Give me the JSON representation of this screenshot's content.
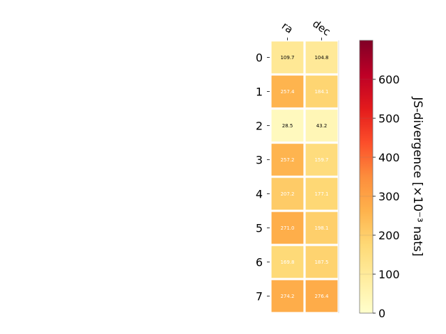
{
  "chart_data": {
    "type": "heatmap",
    "columns": [
      "ra",
      "dec"
    ],
    "rows": [
      "0",
      "1",
      "2",
      "3",
      "4",
      "5",
      "6",
      "7"
    ],
    "values": [
      [
        109.7,
        104.8
      ],
      [
        257.4,
        184.1
      ],
      [
        28.5,
        43.2
      ],
      [
        257.2,
        159.7
      ],
      [
        207.2,
        177.1
      ],
      [
        271.0,
        198.1
      ],
      [
        169.8,
        187.5
      ],
      [
        274.2,
        276.4
      ]
    ],
    "cell_labels": [
      [
        "109.7",
        "104.8"
      ],
      [
        "257.4",
        "184.1"
      ],
      [
        "28.5",
        "43.2"
      ],
      [
        "257.2",
        "159.7"
      ],
      [
        "207.2",
        "177.1"
      ],
      [
        "271.0",
        "198.1"
      ],
      [
        "169.8",
        "187.5"
      ],
      [
        "274.2",
        "276.4"
      ]
    ],
    "colorbar": {
      "label": "JS-divergence [×10⁻³ nats]",
      "range": [
        0,
        700
      ],
      "ticks": [
        0,
        100,
        200,
        300,
        400,
        500,
        600
      ],
      "tick_labels": [
        "0",
        "100",
        "200",
        "300",
        "400",
        "500",
        "600"
      ],
      "colormap": "YlOrRd",
      "colormap_stops": [
        "#ffffcc",
        "#ffeda0",
        "#fed976",
        "#feb24c",
        "#fd8d3c",
        "#fc4e2a",
        "#e31a1c",
        "#bd0026",
        "#800026"
      ]
    },
    "light_text_threshold": 150,
    "text_colors": {
      "dark": "#000000",
      "light": "#ffffff"
    }
  }
}
